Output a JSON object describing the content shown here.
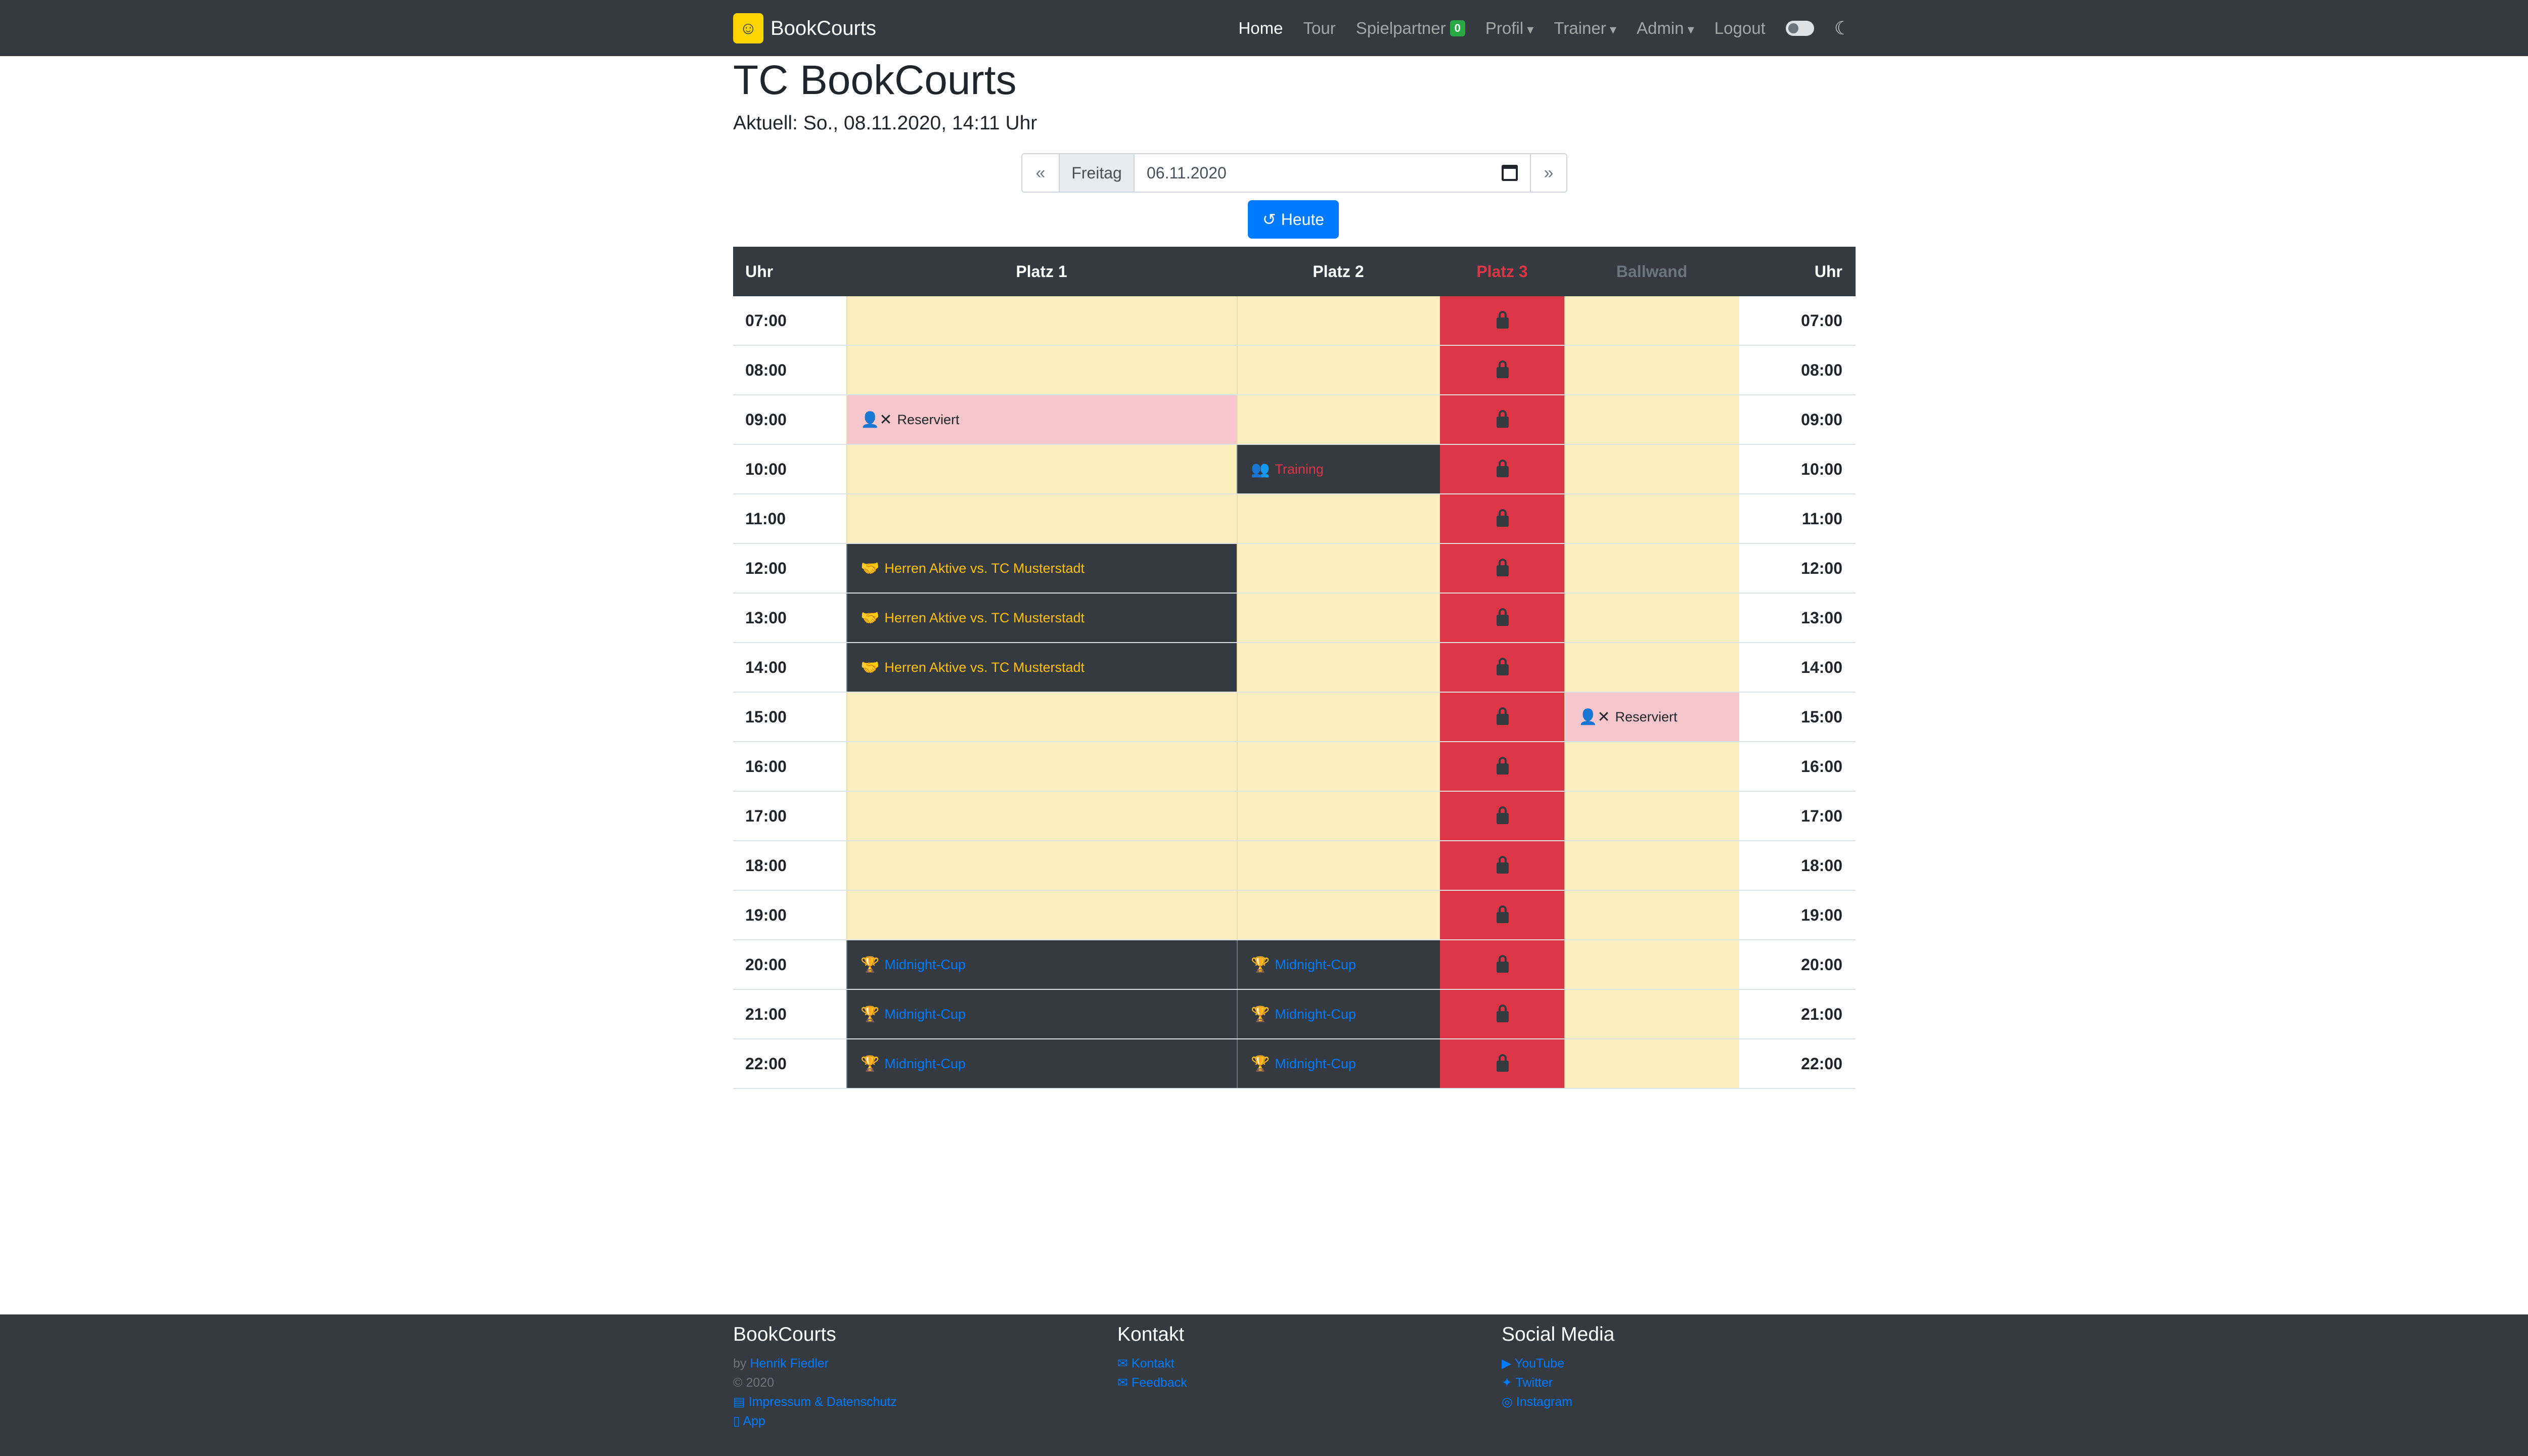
{
  "navbar": {
    "brand": "BookCourts",
    "links": {
      "home": "Home",
      "tour": "Tour",
      "spielpartner": "Spielpartner",
      "spielpartner_badge": "0",
      "profil": "Profil",
      "trainer": "Trainer",
      "admin": "Admin",
      "logout": "Logout"
    }
  },
  "header": {
    "title": "TC BookCourts",
    "current": "Aktuell: So., 08.11.2020, 14:11 Uhr"
  },
  "datepicker": {
    "prev": "«",
    "next": "»",
    "day": "Freitag",
    "date": "06.11.2020",
    "today_button": "Heute"
  },
  "table": {
    "headers": {
      "time": "Uhr",
      "platz1": "Platz 1",
      "platz2": "Platz 2",
      "platz3": "Platz 3",
      "ballwand": "Ballwand",
      "time2": "Uhr"
    },
    "rows": [
      {
        "time": "07:00",
        "p1": "",
        "p2": "",
        "bw": ""
      },
      {
        "time": "08:00",
        "p1": "",
        "p2": "",
        "bw": ""
      },
      {
        "time": "09:00",
        "p1": "Reserviert",
        "p2": "",
        "bw": ""
      },
      {
        "time": "10:00",
        "p1": "",
        "p2": "Training",
        "bw": ""
      },
      {
        "time": "11:00",
        "p1": "",
        "p2": "",
        "bw": ""
      },
      {
        "time": "12:00",
        "p1": "Herren Aktive vs. TC Musterstadt",
        "p2": "",
        "bw": ""
      },
      {
        "time": "13:00",
        "p1": "Herren Aktive vs. TC Musterstadt",
        "p2": "",
        "bw": ""
      },
      {
        "time": "14:00",
        "p1": "Herren Aktive vs. TC Musterstadt",
        "p2": "",
        "bw": ""
      },
      {
        "time": "15:00",
        "p1": "",
        "p2": "",
        "bw": "Reserviert"
      },
      {
        "time": "16:00",
        "p1": "",
        "p2": "",
        "bw": ""
      },
      {
        "time": "17:00",
        "p1": "",
        "p2": "",
        "bw": ""
      },
      {
        "time": "18:00",
        "p1": "",
        "p2": "",
        "bw": ""
      },
      {
        "time": "19:00",
        "p1": "",
        "p2": "",
        "bw": ""
      },
      {
        "time": "20:00",
        "p1": "Midnight-Cup",
        "p2": "Midnight-Cup",
        "bw": ""
      },
      {
        "time": "21:00",
        "p1": "Midnight-Cup",
        "p2": "Midnight-Cup",
        "bw": ""
      },
      {
        "time": "22:00",
        "p1": "Midnight-Cup",
        "p2": "Midnight-Cup",
        "bw": ""
      }
    ]
  },
  "footer": {
    "col1": {
      "title": "BookCourts",
      "by": "by",
      "author": "Henrik Fiedler",
      "copyright": "© 2020",
      "impressum": "Impressum & Datenschutz",
      "app": "App"
    },
    "col2": {
      "title": "Kontakt",
      "kontakt": "Kontakt",
      "feedback": "Feedback"
    },
    "col3": {
      "title": "Social Media",
      "youtube": "YouTube",
      "twitter": "Twitter",
      "instagram": "Instagram"
    }
  }
}
